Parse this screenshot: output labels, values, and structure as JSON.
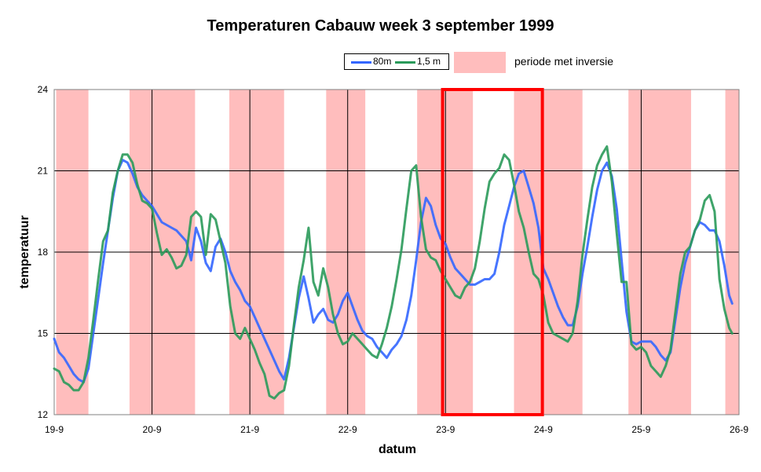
{
  "chart_data": {
    "type": "line",
    "title": "Temperaturen Cabauw week 3 september 1999",
    "xlabel": "datum",
    "ylabel": "temperatuur",
    "x_ticks": [
      "19-9",
      "20-9",
      "21-9",
      "22-9",
      "23-9",
      "24-9",
      "25-9",
      "26-9"
    ],
    "y_ticks": [
      "12",
      "15",
      "18",
      "21",
      "24"
    ],
    "xlim": [
      0,
      7
    ],
    "ylim": [
      12,
      24
    ],
    "grid": true,
    "legend_position": "top-right",
    "series": [
      {
        "name": "80m",
        "color": "#3366ff",
        "points": [
          [
            0.0,
            14.8
          ],
          [
            0.05,
            14.3
          ],
          [
            0.1,
            14.1
          ],
          [
            0.15,
            13.8
          ],
          [
            0.2,
            13.5
          ],
          [
            0.25,
            13.3
          ],
          [
            0.3,
            13.2
          ],
          [
            0.35,
            13.7
          ],
          [
            0.4,
            15.0
          ],
          [
            0.45,
            16.3
          ],
          [
            0.5,
            17.6
          ],
          [
            0.55,
            18.8
          ],
          [
            0.6,
            20.0
          ],
          [
            0.65,
            21.0
          ],
          [
            0.7,
            21.4
          ],
          [
            0.75,
            21.3
          ],
          [
            0.8,
            20.9
          ],
          [
            0.85,
            20.4
          ],
          [
            0.9,
            20.1
          ],
          [
            0.95,
            19.9
          ],
          [
            1.0,
            19.7
          ],
          [
            1.05,
            19.4
          ],
          [
            1.1,
            19.1
          ],
          [
            1.15,
            19.0
          ],
          [
            1.2,
            18.9
          ],
          [
            1.25,
            18.8
          ],
          [
            1.3,
            18.6
          ],
          [
            1.35,
            18.4
          ],
          [
            1.4,
            17.7
          ],
          [
            1.45,
            18.9
          ],
          [
            1.5,
            18.4
          ],
          [
            1.55,
            17.6
          ],
          [
            1.6,
            17.3
          ],
          [
            1.65,
            18.2
          ],
          [
            1.7,
            18.5
          ],
          [
            1.75,
            18.0
          ],
          [
            1.8,
            17.3
          ],
          [
            1.85,
            16.9
          ],
          [
            1.9,
            16.6
          ],
          [
            1.95,
            16.2
          ],
          [
            2.0,
            16.0
          ],
          [
            2.05,
            15.6
          ],
          [
            2.1,
            15.2
          ],
          [
            2.15,
            14.8
          ],
          [
            2.2,
            14.4
          ],
          [
            2.25,
            14.0
          ],
          [
            2.3,
            13.6
          ],
          [
            2.35,
            13.3
          ],
          [
            2.4,
            14.1
          ],
          [
            2.45,
            15.2
          ],
          [
            2.5,
            16.3
          ],
          [
            2.55,
            17.1
          ],
          [
            2.6,
            16.3
          ],
          [
            2.65,
            15.4
          ],
          [
            2.7,
            15.7
          ],
          [
            2.75,
            15.9
          ],
          [
            2.8,
            15.5
          ],
          [
            2.85,
            15.4
          ],
          [
            2.9,
            15.7
          ],
          [
            2.95,
            16.2
          ],
          [
            3.0,
            16.5
          ],
          [
            3.05,
            16.0
          ],
          [
            3.1,
            15.5
          ],
          [
            3.15,
            15.1
          ],
          [
            3.2,
            14.9
          ],
          [
            3.25,
            14.8
          ],
          [
            3.3,
            14.5
          ],
          [
            3.35,
            14.3
          ],
          [
            3.4,
            14.1
          ],
          [
            3.45,
            14.4
          ],
          [
            3.5,
            14.6
          ],
          [
            3.55,
            14.9
          ],
          [
            3.6,
            15.5
          ],
          [
            3.65,
            16.4
          ],
          [
            3.7,
            17.7
          ],
          [
            3.75,
            19.1
          ],
          [
            3.8,
            20.0
          ],
          [
            3.85,
            19.7
          ],
          [
            3.9,
            19.0
          ],
          [
            3.95,
            18.5
          ],
          [
            4.0,
            18.3
          ],
          [
            4.05,
            17.8
          ],
          [
            4.1,
            17.4
          ],
          [
            4.15,
            17.2
          ],
          [
            4.2,
            17.0
          ],
          [
            4.25,
            16.8
          ],
          [
            4.3,
            16.8
          ],
          [
            4.35,
            16.9
          ],
          [
            4.4,
            17.0
          ],
          [
            4.45,
            17.0
          ],
          [
            4.5,
            17.2
          ],
          [
            4.55,
            18.0
          ],
          [
            4.6,
            19.0
          ],
          [
            4.65,
            19.7
          ],
          [
            4.7,
            20.4
          ],
          [
            4.75,
            20.9
          ],
          [
            4.8,
            21.0
          ],
          [
            4.85,
            20.4
          ],
          [
            4.9,
            19.8
          ],
          [
            4.95,
            18.9
          ],
          [
            5.0,
            17.4
          ],
          [
            5.05,
            17.0
          ],
          [
            5.1,
            16.5
          ],
          [
            5.15,
            16.0
          ],
          [
            5.2,
            15.6
          ],
          [
            5.25,
            15.3
          ],
          [
            5.3,
            15.3
          ],
          [
            5.35,
            16.0
          ],
          [
            5.4,
            17.2
          ],
          [
            5.45,
            18.2
          ],
          [
            5.5,
            19.3
          ],
          [
            5.55,
            20.3
          ],
          [
            5.6,
            21.0
          ],
          [
            5.65,
            21.3
          ],
          [
            5.7,
            20.8
          ],
          [
            5.75,
            19.6
          ],
          [
            5.8,
            17.7
          ],
          [
            5.85,
            15.8
          ],
          [
            5.9,
            14.7
          ],
          [
            5.95,
            14.6
          ],
          [
            6.0,
            14.7
          ],
          [
            6.05,
            14.7
          ],
          [
            6.1,
            14.7
          ],
          [
            6.15,
            14.5
          ],
          [
            6.2,
            14.2
          ],
          [
            6.25,
            14.0
          ],
          [
            6.3,
            14.3
          ],
          [
            6.35,
            15.5
          ],
          [
            6.4,
            16.7
          ],
          [
            6.45,
            17.6
          ],
          [
            6.5,
            18.2
          ],
          [
            6.55,
            18.8
          ],
          [
            6.6,
            19.1
          ],
          [
            6.65,
            19.0
          ],
          [
            6.7,
            18.8
          ],
          [
            6.75,
            18.8
          ],
          [
            6.8,
            18.4
          ],
          [
            6.85,
            17.5
          ],
          [
            6.9,
            16.4
          ],
          [
            6.93,
            16.1
          ]
        ]
      },
      {
        "name": "1,5 m",
        "color": "#2a9a5a",
        "points": [
          [
            0.0,
            13.7
          ],
          [
            0.05,
            13.6
          ],
          [
            0.1,
            13.2
          ],
          [
            0.15,
            13.1
          ],
          [
            0.2,
            12.9
          ],
          [
            0.25,
            12.9
          ],
          [
            0.3,
            13.2
          ],
          [
            0.35,
            14.1
          ],
          [
            0.4,
            15.5
          ],
          [
            0.45,
            17.0
          ],
          [
            0.5,
            18.4
          ],
          [
            0.55,
            18.8
          ],
          [
            0.6,
            20.2
          ],
          [
            0.65,
            21.0
          ],
          [
            0.7,
            21.6
          ],
          [
            0.75,
            21.6
          ],
          [
            0.8,
            21.3
          ],
          [
            0.85,
            20.5
          ],
          [
            0.9,
            19.9
          ],
          [
            0.95,
            19.8
          ],
          [
            1.0,
            19.6
          ],
          [
            1.05,
            18.7
          ],
          [
            1.1,
            17.9
          ],
          [
            1.15,
            18.1
          ],
          [
            1.2,
            17.8
          ],
          [
            1.25,
            17.4
          ],
          [
            1.3,
            17.5
          ],
          [
            1.35,
            17.9
          ],
          [
            1.4,
            19.3
          ],
          [
            1.45,
            19.5
          ],
          [
            1.5,
            19.3
          ],
          [
            1.55,
            17.9
          ],
          [
            1.6,
            19.4
          ],
          [
            1.65,
            19.2
          ],
          [
            1.7,
            18.4
          ],
          [
            1.75,
            17.6
          ],
          [
            1.8,
            16.0
          ],
          [
            1.85,
            15.0
          ],
          [
            1.9,
            14.8
          ],
          [
            1.95,
            15.2
          ],
          [
            2.0,
            14.8
          ],
          [
            2.05,
            14.4
          ],
          [
            2.1,
            13.9
          ],
          [
            2.15,
            13.5
          ],
          [
            2.2,
            12.7
          ],
          [
            2.25,
            12.6
          ],
          [
            2.3,
            12.8
          ],
          [
            2.35,
            12.9
          ],
          [
            2.4,
            13.8
          ],
          [
            2.45,
            15.3
          ],
          [
            2.5,
            16.7
          ],
          [
            2.55,
            17.7
          ],
          [
            2.6,
            18.9
          ],
          [
            2.65,
            16.9
          ],
          [
            2.7,
            16.4
          ],
          [
            2.75,
            17.4
          ],
          [
            2.8,
            16.7
          ],
          [
            2.85,
            15.7
          ],
          [
            2.9,
            15.0
          ],
          [
            2.95,
            14.6
          ],
          [
            3.0,
            14.7
          ],
          [
            3.05,
            15.0
          ],
          [
            3.1,
            14.8
          ],
          [
            3.15,
            14.6
          ],
          [
            3.2,
            14.4
          ],
          [
            3.25,
            14.2
          ],
          [
            3.3,
            14.1
          ],
          [
            3.35,
            14.6
          ],
          [
            3.4,
            15.2
          ],
          [
            3.45,
            16.0
          ],
          [
            3.5,
            17.0
          ],
          [
            3.55,
            18.1
          ],
          [
            3.6,
            19.6
          ],
          [
            3.65,
            21.0
          ],
          [
            3.7,
            21.2
          ],
          [
            3.75,
            19.3
          ],
          [
            3.8,
            18.1
          ],
          [
            3.85,
            17.8
          ],
          [
            3.9,
            17.7
          ],
          [
            3.95,
            17.3
          ],
          [
            4.0,
            17.0
          ],
          [
            4.05,
            16.7
          ],
          [
            4.1,
            16.4
          ],
          [
            4.15,
            16.3
          ],
          [
            4.2,
            16.7
          ],
          [
            4.25,
            16.9
          ],
          [
            4.3,
            17.4
          ],
          [
            4.35,
            18.4
          ],
          [
            4.4,
            19.6
          ],
          [
            4.45,
            20.6
          ],
          [
            4.5,
            20.9
          ],
          [
            4.55,
            21.1
          ],
          [
            4.6,
            21.6
          ],
          [
            4.65,
            21.4
          ],
          [
            4.7,
            20.5
          ],
          [
            4.75,
            19.5
          ],
          [
            4.8,
            18.9
          ],
          [
            4.85,
            18.0
          ],
          [
            4.9,
            17.2
          ],
          [
            4.95,
            17.0
          ],
          [
            5.0,
            16.4
          ],
          [
            5.05,
            15.4
          ],
          [
            5.1,
            15.0
          ],
          [
            5.15,
            14.9
          ],
          [
            5.2,
            14.8
          ],
          [
            5.25,
            14.7
          ],
          [
            5.3,
            15.0
          ],
          [
            5.35,
            16.2
          ],
          [
            5.4,
            17.9
          ],
          [
            5.45,
            19.2
          ],
          [
            5.5,
            20.4
          ],
          [
            5.55,
            21.2
          ],
          [
            5.6,
            21.6
          ],
          [
            5.65,
            21.9
          ],
          [
            5.7,
            20.6
          ],
          [
            5.75,
            18.7
          ],
          [
            5.8,
            16.9
          ],
          [
            5.85,
            16.9
          ],
          [
            5.9,
            14.6
          ],
          [
            5.95,
            14.4
          ],
          [
            6.0,
            14.5
          ],
          [
            6.05,
            14.3
          ],
          [
            6.1,
            13.8
          ],
          [
            6.15,
            13.6
          ],
          [
            6.2,
            13.4
          ],
          [
            6.25,
            13.8
          ],
          [
            6.3,
            14.4
          ],
          [
            6.35,
            15.8
          ],
          [
            6.4,
            17.2
          ],
          [
            6.45,
            18.0
          ],
          [
            6.5,
            18.2
          ],
          [
            6.55,
            18.8
          ],
          [
            6.6,
            19.2
          ],
          [
            6.65,
            19.9
          ],
          [
            6.7,
            20.1
          ],
          [
            6.75,
            19.5
          ],
          [
            6.8,
            17.0
          ],
          [
            6.85,
            15.9
          ],
          [
            6.9,
            15.2
          ],
          [
            6.93,
            15.0
          ]
        ]
      }
    ],
    "inversion_periods": [
      [
        0.02,
        0.35
      ],
      [
        0.77,
        1.44
      ],
      [
        1.79,
        2.35
      ],
      [
        2.78,
        3.18
      ],
      [
        3.71,
        4.28
      ],
      [
        4.7,
        5.4
      ],
      [
        5.87,
        6.51
      ],
      [
        6.86,
        7.0
      ]
    ],
    "highlight_box": [
      3.97,
      4.99
    ],
    "highlight_color": "#ff0000",
    "inversion_color": "#ffbdbd",
    "legend": {
      "series_80m": "80m",
      "series_1_5m": "1,5 m",
      "inversion_label": "periode met inversie"
    }
  }
}
